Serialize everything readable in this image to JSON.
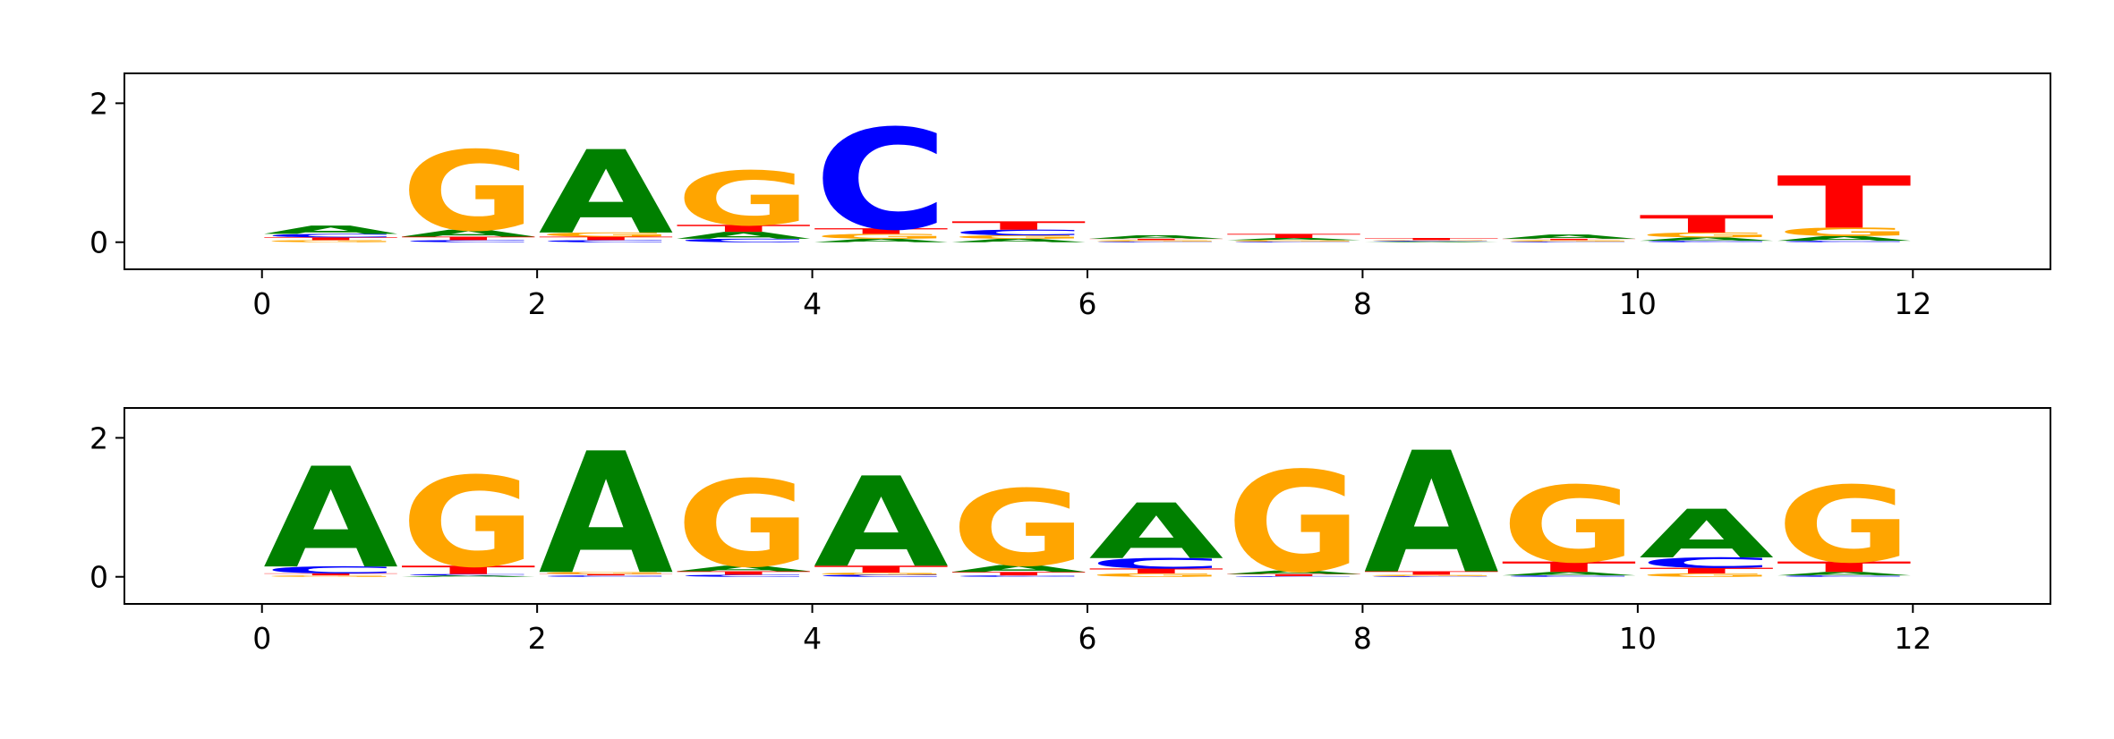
{
  "chart_data": [
    {
      "type": "logo",
      "xlim": [
        -1,
        13
      ],
      "ylim": [
        -0.39,
        2.43
      ],
      "xticks": [
        0,
        2,
        4,
        6,
        8,
        10,
        12
      ],
      "yticks": [
        0,
        2
      ],
      "series": [
        {
          "name": "A",
          "color": "#008000",
          "values": [
            0.12,
            0.1,
            1.2,
            0.1,
            0.05,
            0.05,
            0.05,
            0.03,
            0.01,
            0.06,
            0.05,
            0.07
          ]
        },
        {
          "name": "C",
          "color": "#0000ff",
          "values": [
            0.05,
            0.03,
            0.03,
            0.05,
            1.45,
            0.08,
            0.01,
            0.01,
            0.01,
            0.01,
            0.02,
            0.02
          ]
        },
        {
          "name": "G",
          "color": "#ffa500",
          "values": [
            0.03,
            1.15,
            0.06,
            0.78,
            0.07,
            0.05,
            0.02,
            0.02,
            0.01,
            0.02,
            0.07,
            0.12
          ]
        },
        {
          "name": "T",
          "color": "#ff0000",
          "values": [
            0.04,
            0.05,
            0.05,
            0.1,
            0.08,
            0.12,
            0.02,
            0.06,
            0.03,
            0.02,
            0.25,
            0.75
          ]
        }
      ]
    },
    {
      "type": "logo",
      "xlim": [
        -1,
        13
      ],
      "ylim": [
        -0.39,
        2.43
      ],
      "xticks": [
        0,
        2,
        4,
        6,
        8,
        10,
        12
      ],
      "yticks": [
        0,
        2
      ],
      "series": [
        {
          "name": "A",
          "color": "#008000",
          "values": [
            1.45,
            0.02,
            1.75,
            0.08,
            1.3,
            0.1,
            0.8,
            0.05,
            1.75,
            0.05,
            0.7,
            0.05
          ]
        },
        {
          "name": "C",
          "color": "#0000ff",
          "values": [
            0.1,
            0.02,
            0.02,
            0.03,
            0.03,
            0.02,
            0.15,
            0.01,
            0.01,
            0.02,
            0.15,
            0.02
          ]
        },
        {
          "name": "G",
          "color": "#ffa500",
          "values": [
            0.02,
            1.3,
            0.03,
            1.25,
            0.03,
            1.1,
            0.05,
            1.45,
            0.02,
            1.1,
            0.05,
            1.1
          ]
        },
        {
          "name": "T",
          "color": "#ff0000",
          "values": [
            0.03,
            0.12,
            0.02,
            0.05,
            0.1,
            0.05,
            0.07,
            0.03,
            0.05,
            0.15,
            0.08,
            0.15
          ]
        }
      ]
    }
  ]
}
